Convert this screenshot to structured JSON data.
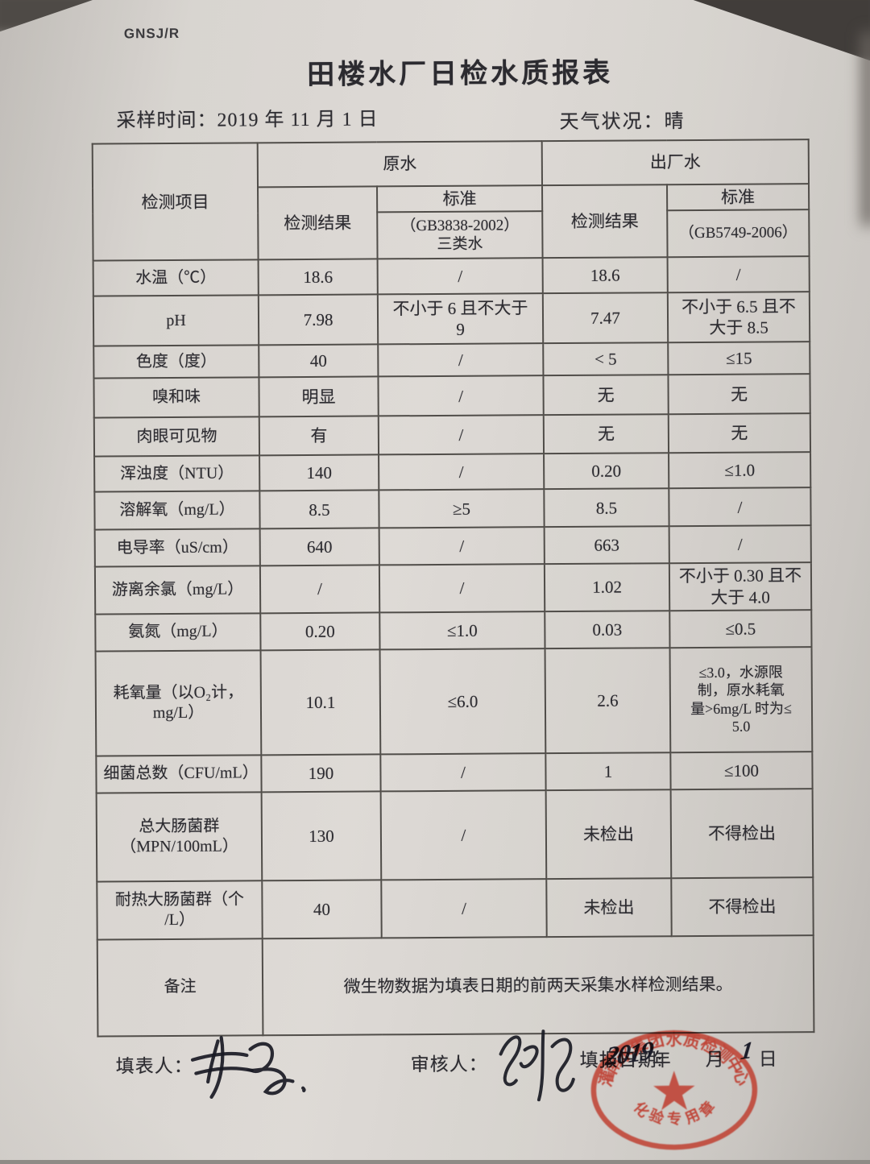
{
  "colors": {
    "paper": "#d4d0cb",
    "ink": "#2c2b30",
    "table_line": "#504d49",
    "stamp_red": "#bd3426"
  },
  "header": {
    "doc_code": "GNSJ/R",
    "title": "田楼水厂日检水质报表",
    "sample_label": "采样时间：",
    "sample_value": "2019 年 11 月 1 日",
    "weather_label": "天气状况：",
    "weather_value": "晴"
  },
  "table": {
    "col_item": "检测项目",
    "group_raw": "原水",
    "group_out": "出厂水",
    "col_result_raw": "检测结果",
    "col_standard_raw": "标准",
    "col_result_out": "检测结果",
    "col_standard_out": "标准",
    "raw_standard_code": "（GB3838-2002）\n三类水",
    "out_standard_code": "（GB5749-2006）",
    "rows": [
      {
        "item": "水温（℃）",
        "raw_result": "18.6",
        "raw_std": "/",
        "out_result": "18.6",
        "out_std": "/"
      },
      {
        "item": "pH",
        "raw_result": "7.98",
        "raw_std": "不小于 6 且不大于\n9",
        "out_result": "7.47",
        "out_std": "不小于 6.5 且不\n大于 8.5"
      },
      {
        "item": "色度（度）",
        "raw_result": "40",
        "raw_std": "/",
        "out_result": "< 5",
        "out_std": "≤15"
      },
      {
        "item": "嗅和味",
        "raw_result": "明显",
        "raw_std": "/",
        "out_result": "无",
        "out_std": "无"
      },
      {
        "item": "肉眼可见物",
        "raw_result": "有",
        "raw_std": "/",
        "out_result": "无",
        "out_std": "无"
      },
      {
        "item": "浑浊度（NTU）",
        "raw_result": "140",
        "raw_std": "/",
        "out_result": "0.20",
        "out_std": "≤1.0"
      },
      {
        "item": "溶解氧（mg/L）",
        "raw_result": "8.5",
        "raw_std": "≥5",
        "out_result": "8.5",
        "out_std": "/"
      },
      {
        "item": "电导率（uS/cm）",
        "raw_result": "640",
        "raw_std": "/",
        "out_result": "663",
        "out_std": "/"
      },
      {
        "item": "游离余氯（mg/L）",
        "raw_result": "/",
        "raw_std": "/",
        "out_result": "1.02",
        "out_std": "不小于 0.30 且不\n大于 4.0"
      },
      {
        "item": "氨氮（mg/L）",
        "raw_result": "0.20",
        "raw_std": "≤1.0",
        "out_result": "0.03",
        "out_std": "≤0.5"
      },
      {
        "item": "耗氧量（以O₂计，\nmg/L）",
        "raw_result": "10.1",
        "raw_std": "≤6.0",
        "out_result": "2.6",
        "out_std": "≤3.0，水源限\n制，原水耗氧\n量>6mg/L 时为≤\n5.0"
      },
      {
        "item": "细菌总数（CFU/mL）",
        "raw_result": "190",
        "raw_std": "/",
        "out_result": "1",
        "out_std": "≤100"
      },
      {
        "item": "总大肠菌群\n（MPN/100mL）",
        "raw_result": "130",
        "raw_std": "/",
        "out_result": "未检出",
        "out_std": "不得检出"
      },
      {
        "item": "耐热大肠菌群（个\n/L）",
        "raw_result": "40",
        "raw_std": "/",
        "out_result": "未检出",
        "out_std": "不得检出"
      }
    ],
    "remark_label": "备注",
    "remark_text": "微生物数据为填表日期的前两天采集水样检测结果。"
  },
  "footer": {
    "filler_label": "填表人：",
    "reviewer_label": "审核人：",
    "date_label": "填报日期:",
    "date_year": "2019",
    "year_unit": "年",
    "month_unit": "月",
    "date_day": "1",
    "day_unit": "日"
  },
  "stamp": {
    "arc_top": "灌南水集团水质检测中心",
    "arc_bottom": "化验专用章"
  }
}
